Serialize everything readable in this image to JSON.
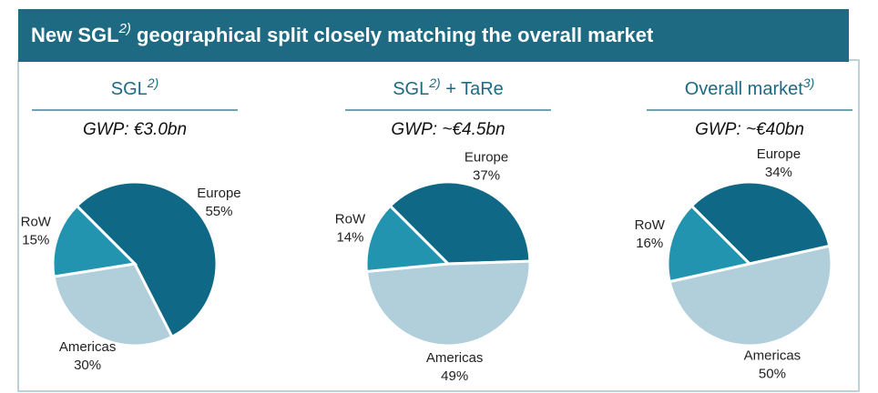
{
  "header": {
    "title": "New SGL",
    "title_superscript": "2)",
    "title_rest": " geographical split closely matching the overall market"
  },
  "chart_data": [
    {
      "type": "pie",
      "title": "SGL",
      "title_superscript": "2)",
      "subtitle": "GWP: €3.0bn",
      "categories": [
        "Europe",
        "Americas",
        "RoW"
      ],
      "values": [
        55,
        30,
        15
      ],
      "value_labels": [
        "55%",
        "30%",
        "15%"
      ],
      "colors": [
        "#0f6986",
        "#b0cfdb",
        "#2394af"
      ]
    },
    {
      "type": "pie",
      "title": "SGL",
      "title_superscript": "2)",
      "title_rest": " + TaRe",
      "subtitle": "GWP: ~€4.5bn",
      "categories": [
        "Europe",
        "Americas",
        "RoW"
      ],
      "values": [
        37,
        49,
        14
      ],
      "value_labels": [
        "37%",
        "49%",
        "14%"
      ],
      "colors": [
        "#0f6986",
        "#b0cfdb",
        "#2394af"
      ]
    },
    {
      "type": "pie",
      "title": "Overall market",
      "title_superscript": "3)",
      "subtitle": "GWP: ~€40bn",
      "categories": [
        "Europe",
        "Americas",
        "RoW"
      ],
      "values": [
        34,
        50,
        16
      ],
      "value_labels": [
        "34%",
        "50%",
        "16%"
      ],
      "colors": [
        "#0f6986",
        "#b0cfdb",
        "#2394af"
      ]
    }
  ]
}
